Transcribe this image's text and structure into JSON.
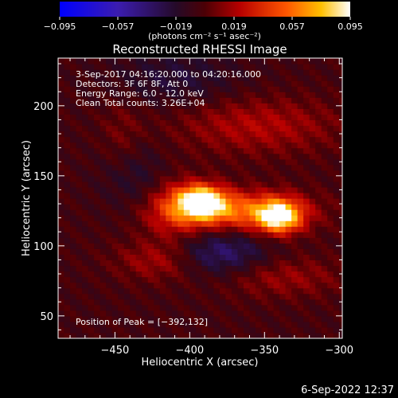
{
  "chart_data": {
    "type": "heatmap",
    "title": "Reconstructed RHESSI Image",
    "xlabel": "Heliocentric X (arcsec)",
    "ylabel": "Heliocentric Y (arcsec)",
    "xlim": [
      -488,
      -298
    ],
    "ylim": [
      34,
      234
    ],
    "x_ticks": [
      -450,
      -400,
      -350,
      -300
    ],
    "y_ticks": [
      50,
      100,
      150,
      200
    ],
    "x_tick_labels": [
      "−450",
      "−400",
      "−350",
      "−300"
    ],
    "y_tick_labels": [
      "50",
      "100",
      "150",
      "200"
    ],
    "colorbar": {
      "min": -0.095,
      "max": 0.095,
      "ticks": [
        -0.095,
        -0.057,
        -0.019,
        0.019,
        0.057,
        0.095
      ],
      "tick_labels": [
        "−0.095",
        "−0.057",
        "−0.019",
        "0.019",
        "0.057",
        "0.095"
      ],
      "units": "(photons cm⁻² s⁻¹ asec⁻²)"
    },
    "info_lines": [
      "3-Sep-2017 04:16:20.000 to 04:20:16.000",
      "Detectors: 3F 6F 8F, Att 0",
      "Energy Range: 6.0 - 12.0 keV",
      "Clean     Total counts: 3.26E+04"
    ],
    "peak_text": "Position of Peak = [−392,132]",
    "footer_date": "6-Sep-2022 12:37",
    "sources": [
      {
        "x": -392,
        "y": 132,
        "peak": 0.095
      },
      {
        "x": -340,
        "y": 121,
        "peak": 0.085
      }
    ]
  }
}
